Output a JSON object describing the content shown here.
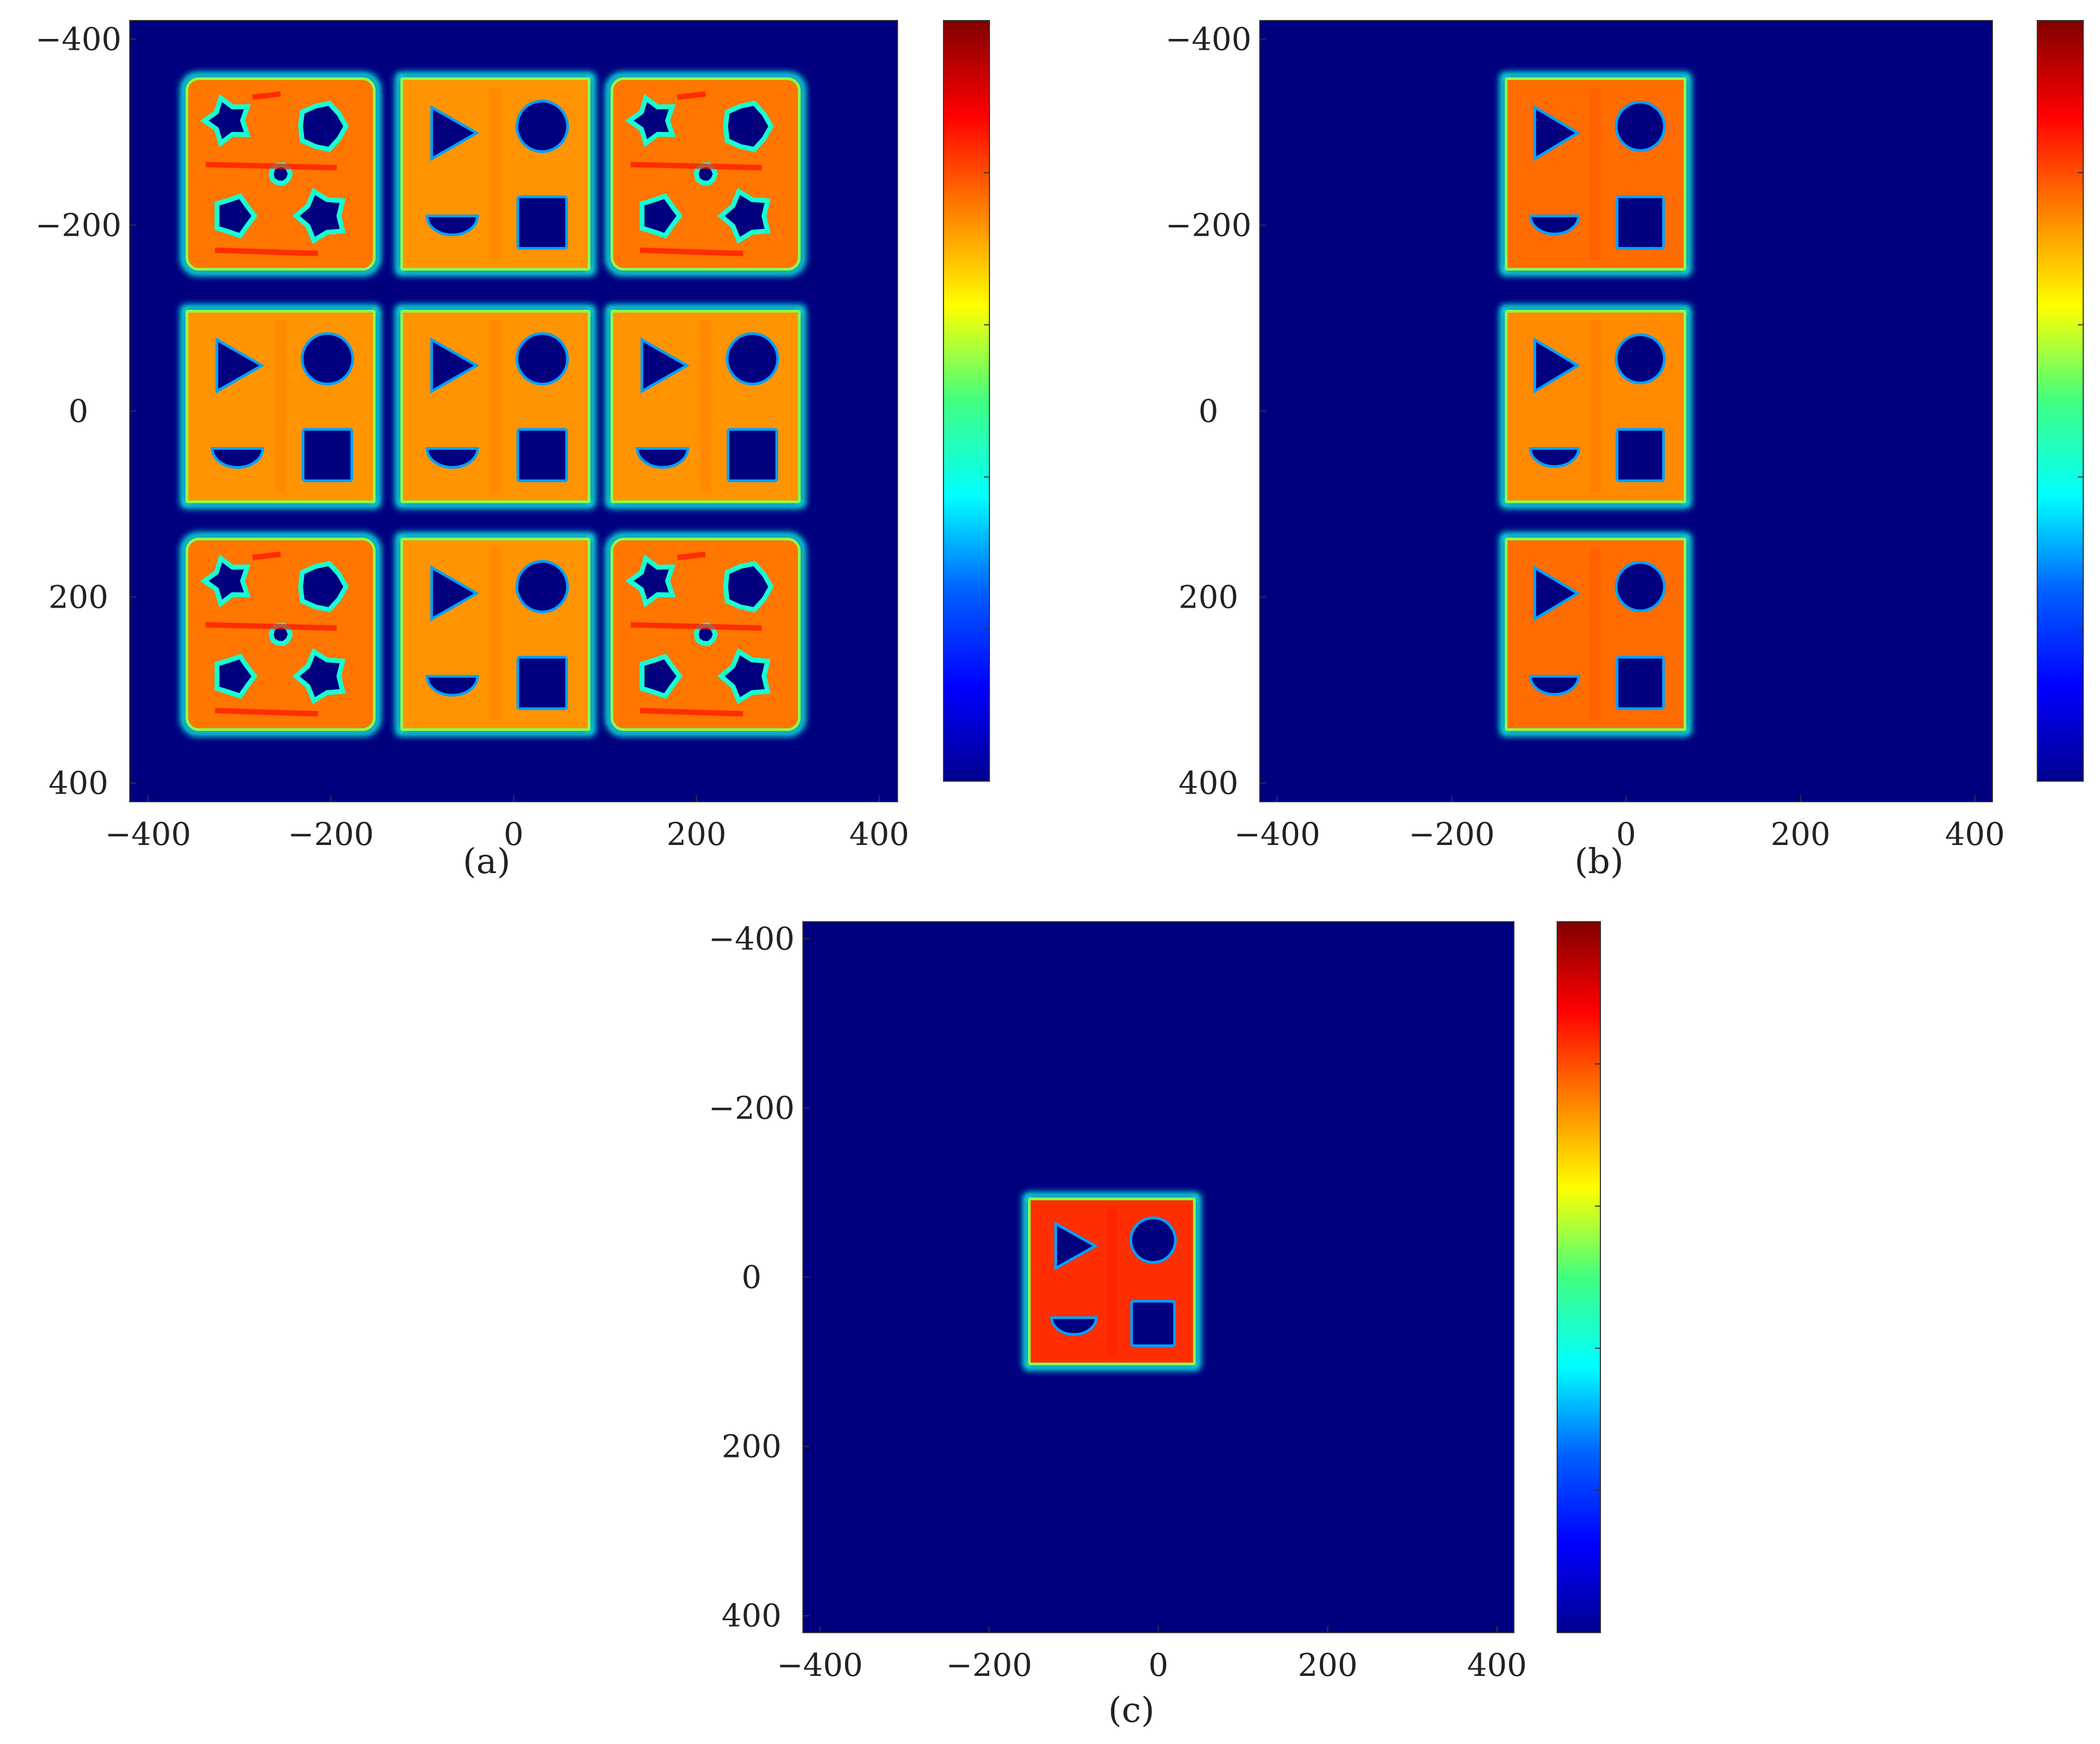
{
  "colors": {
    "background_blue": "#00007f",
    "colormap": [
      "#00008f",
      "#0000ff",
      "#0080ff",
      "#00ffff",
      "#80ff80",
      "#ffff00",
      "#ff8000",
      "#ff0000",
      "#800000"
    ]
  },
  "chart_data": [
    {
      "type": "heatmap",
      "panel_label": "(a)",
      "x_ticks": [
        "−400",
        "−200",
        "0",
        "200",
        "400"
      ],
      "y_ticks": [
        "−400",
        "−200",
        "0",
        "200",
        "400"
      ],
      "xlim": [
        -420,
        420
      ],
      "ylim": [
        -420,
        420
      ],
      "y_direction": "down",
      "colorbar": true,
      "content": "3x3 grid of square tiles; middle row and middle column tiles show triangle, circle, half-disk, square cutouts; corner tiles are distorted",
      "tiles": [
        {
          "cx": -255,
          "cy": -255,
          "size": 205,
          "level": 0.76,
          "quality": "distorted"
        },
        {
          "cx": -20,
          "cy": -255,
          "size": 205,
          "level": 0.73,
          "quality": "clean"
        },
        {
          "cx": 210,
          "cy": -255,
          "size": 205,
          "level": 0.76,
          "quality": "distorted"
        },
        {
          "cx": -255,
          "cy": -5,
          "size": 205,
          "level": 0.73,
          "quality": "clean"
        },
        {
          "cx": -20,
          "cy": -5,
          "size": 205,
          "level": 0.73,
          "quality": "clean"
        },
        {
          "cx": 210,
          "cy": -5,
          "size": 205,
          "level": 0.73,
          "quality": "clean"
        },
        {
          "cx": -255,
          "cy": 240,
          "size": 205,
          "level": 0.76,
          "quality": "distorted"
        },
        {
          "cx": -20,
          "cy": 240,
          "size": 205,
          "level": 0.73,
          "quality": "clean"
        },
        {
          "cx": 210,
          "cy": 240,
          "size": 205,
          "level": 0.76,
          "quality": "distorted"
        }
      ]
    },
    {
      "type": "heatmap",
      "panel_label": "(b)",
      "x_ticks": [
        "−400",
        "−200",
        "0",
        "200",
        "400"
      ],
      "y_ticks": [
        "−400",
        "−200",
        "0",
        "200",
        "400"
      ],
      "xlim": [
        -420,
        420
      ],
      "ylim": [
        -420,
        420
      ],
      "y_direction": "down",
      "colorbar": true,
      "content": "single column of three square tiles with triangle, circle, half-disk, square cutouts",
      "tiles": [
        {
          "cx": -35,
          "cy": -255,
          "size": 205,
          "level": 0.77,
          "quality": "clean"
        },
        {
          "cx": -35,
          "cy": -5,
          "size": 205,
          "level": 0.74,
          "quality": "clean"
        },
        {
          "cx": -35,
          "cy": 240,
          "size": 205,
          "level": 0.77,
          "quality": "clean"
        }
      ]
    },
    {
      "type": "heatmap",
      "panel_label": "(c)",
      "x_ticks": [
        "−400",
        "−200",
        "0",
        "200",
        "400"
      ],
      "y_ticks": [
        "−400",
        "−200",
        "0",
        "200",
        "400"
      ],
      "xlim": [
        -420,
        420
      ],
      "ylim": [
        -420,
        420
      ],
      "y_direction": "down",
      "colorbar": true,
      "content": "single square tile with triangle, circle, half-disk, square cutouts",
      "tiles": [
        {
          "cx": -55,
          "cy": 5,
          "size": 195,
          "level": 0.83,
          "quality": "clean"
        }
      ]
    }
  ]
}
